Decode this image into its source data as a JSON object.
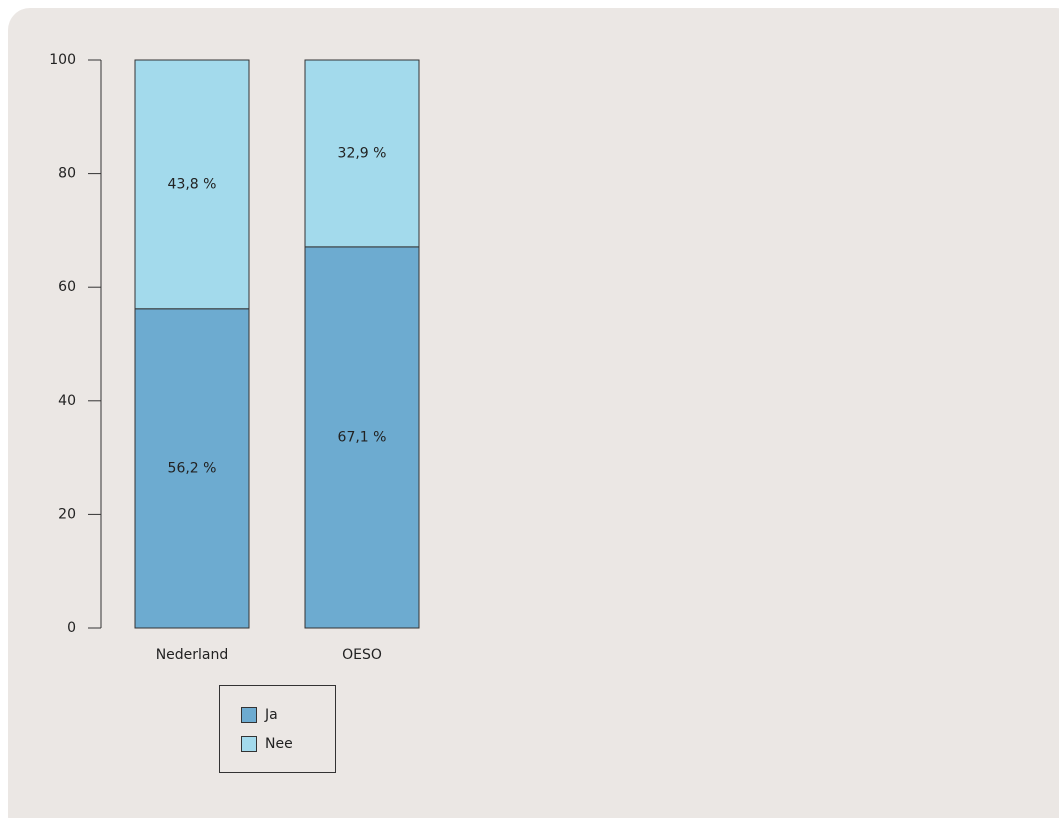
{
  "chart_data": {
    "type": "stacked_bar",
    "categories": [
      "Nederland",
      "OESO"
    ],
    "series": [
      {
        "name": "Ja",
        "color": "#6dabd0",
        "values": [
          56.2,
          67.1
        ],
        "value_labels": [
          "56,2 %",
          "67,1 %"
        ]
      },
      {
        "name": "Nee",
        "color": "#a3daec",
        "values": [
          43.8,
          32.9
        ],
        "value_labels": [
          "43,8 %",
          "32,9 %"
        ]
      }
    ],
    "ylim": [
      0,
      100
    ],
    "yticks": [
      0,
      20,
      40,
      60,
      80,
      100
    ]
  }
}
